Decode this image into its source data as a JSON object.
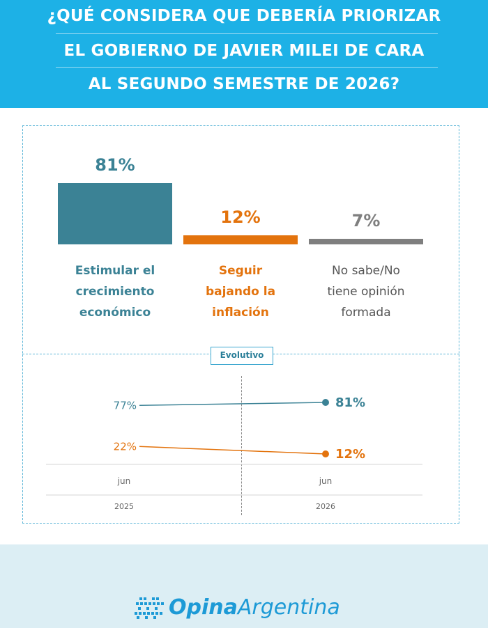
{
  "header": {
    "line1": "¿QUÉ CONSIDERA QUE DEBERÍA PRIORIZAR",
    "line2": "EL GOBIERNO DE JAVIER MILEI DE CARA",
    "line3": "AL SEGUNDO SEMESTRE DE 2026?"
  },
  "colors": {
    "header_bg": "#1db1e6",
    "teal": "#3b8295",
    "orange": "#e3730d",
    "gray": "#7f7f7f",
    "footer_bg": "#dceef4",
    "brand": "#1d9ad6"
  },
  "chart_data": [
    {
      "type": "bar",
      "categories": [
        "Estimular el crecimiento económico",
        "Seguir bajando la inflación",
        "No sabe/No tiene opinión formada"
      ],
      "category_lines": [
        [
          "Estimular el",
          "crecimiento",
          "económico"
        ],
        [
          "Seguir",
          "bajando la",
          "inflación"
        ],
        [
          "No sabe/No",
          "tiene opinión",
          "formada"
        ]
      ],
      "values": [
        81,
        12,
        7
      ],
      "value_labels": [
        "81%",
        "12%",
        "7%"
      ],
      "ylim": [
        0,
        81
      ]
    },
    {
      "type": "line",
      "badge": "Evolutivo",
      "x": [
        "jun 2025",
        "jun 2026"
      ],
      "x_month_labels": [
        "jun",
        "jun"
      ],
      "x_year_labels": [
        "2025",
        "2026"
      ],
      "series": [
        {
          "values": [
            77,
            81
          ],
          "labels": [
            "77%",
            "81%"
          ]
        },
        {
          "values": [
            22,
            12
          ],
          "labels": [
            "22%",
            "12%"
          ]
        }
      ]
    }
  ],
  "footer": {
    "logo_bold": "Opina",
    "logo_rest": "Argentina",
    "logo_icon": "hash-grid-icon"
  }
}
